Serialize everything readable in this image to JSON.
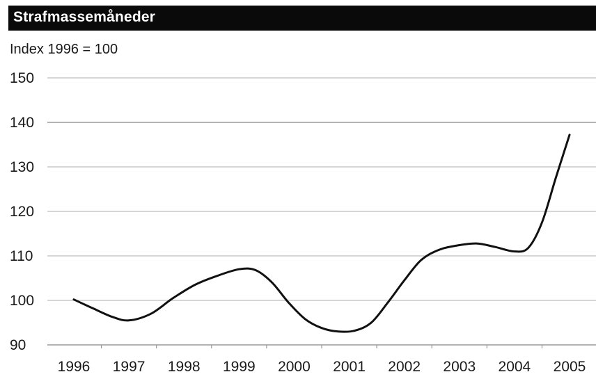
{
  "header": {
    "title": "Strafmassemåneder",
    "subtitle": "Index 1996 = 100"
  },
  "colors": {
    "title_bar": "#0a0a0a",
    "title_text": "#ffffff",
    "line": "#111111",
    "grid": "#c8c8c8",
    "axis": "#999999"
  },
  "chart_data": {
    "type": "line",
    "title": "Strafmassemåneder",
    "subtitle": "Index 1996 = 100",
    "xlabel": "",
    "ylabel": "",
    "categories": [
      "1996",
      "1997",
      "1998",
      "1999",
      "2000",
      "2001",
      "2002",
      "2003",
      "2004",
      "2005"
    ],
    "yticks": [
      90,
      100,
      110,
      120,
      130,
      140,
      150
    ],
    "ylim": [
      90,
      150
    ],
    "grid": "horizontal",
    "series": [
      {
        "x": [
          1996.0,
          1996.35,
          1996.7,
          1997.0,
          1997.4,
          1997.8,
          1998.2,
          1998.6,
          1999.0,
          1999.3,
          1999.6,
          1999.9,
          2000.2,
          2000.5,
          2000.8,
          2001.1,
          2001.4,
          2001.7,
          2002.0,
          2002.3,
          2002.6,
          2002.9,
          2003.3,
          2003.65,
          2004.0,
          2004.25,
          2004.5,
          2004.75,
          2005.0
        ],
        "values": [
          100.2,
          98.2,
          96.3,
          95.5,
          97.0,
          100.5,
          103.5,
          105.5,
          107.0,
          106.8,
          104.0,
          99.5,
          95.8,
          93.8,
          93.0,
          93.2,
          95.0,
          99.5,
          104.5,
          109.0,
          111.2,
          112.2,
          112.8,
          112.0,
          111.0,
          111.8,
          117.5,
          127.5,
          137.2
        ]
      }
    ]
  }
}
